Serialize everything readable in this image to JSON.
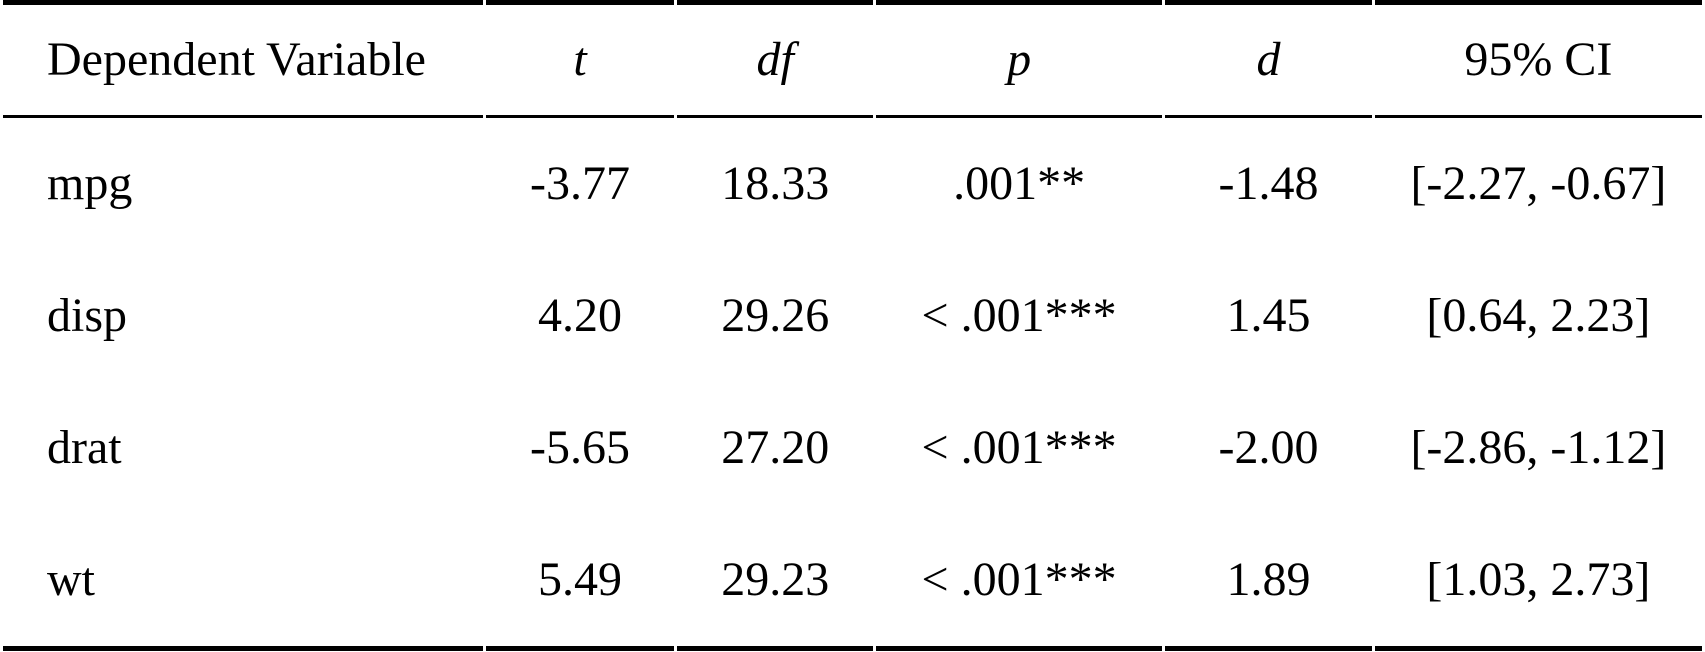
{
  "table": {
    "kind": "independent-samples t-test results (APA style)",
    "columns": [
      {
        "key": "dv",
        "label": "Dependent Variable",
        "italic": false
      },
      {
        "key": "t",
        "label": "t",
        "italic": true
      },
      {
        "key": "df",
        "label": "df",
        "italic": true
      },
      {
        "key": "p",
        "label": "p",
        "italic": true
      },
      {
        "key": "d",
        "label": "d",
        "italic": true
      },
      {
        "key": "ci",
        "label": "95% CI",
        "italic": false
      }
    ],
    "rows": [
      {
        "dv": "mpg",
        "t": "-3.77",
        "df": "18.33",
        "p": ".001**",
        "d": "-1.48",
        "ci": "[-2.27, -0.67]"
      },
      {
        "dv": "disp",
        "t": "4.20",
        "df": "29.26",
        "p": "< .001***",
        "d": "1.45",
        "ci": "[0.64, 2.23]"
      },
      {
        "dv": "drat",
        "t": "-5.65",
        "df": "27.20",
        "p": "< .001***",
        "d": "-2.00",
        "ci": "[-2.86, -1.12]"
      },
      {
        "dv": "wt",
        "t": "5.49",
        "df": "29.23",
        "p": "< .001***",
        "d": "1.89",
        "ci": "[1.03, 2.73]"
      }
    ]
  },
  "colors": {
    "rule": "#000000",
    "text": "#000000",
    "background": "#ffffff"
  }
}
